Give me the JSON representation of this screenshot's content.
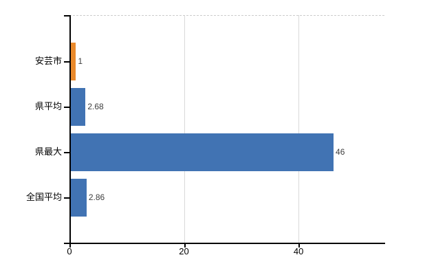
{
  "chart_data": {
    "type": "bar",
    "orientation": "horizontal",
    "categories": [
      "安芸市",
      "県平均",
      "県最大",
      "全国平均"
    ],
    "values": [
      1,
      2.68,
      46,
      2.86
    ],
    "value_labels": [
      "1",
      "2.68",
      "46",
      "2.86"
    ],
    "bar_colors": [
      "#EA8A2C",
      "#4173B3",
      "#4173B3",
      "#4173B3"
    ],
    "highlighted_category": "安芸市",
    "x_ticks": [
      "0",
      "20",
      "40"
    ],
    "x_tick_values": [
      0,
      20,
      40
    ],
    "xlim": [
      0,
      55
    ],
    "grid": "vertical gridlines at x ticks; light leader line from each value label to plot right edge; dashed top border",
    "legend": "none",
    "colors": {
      "axis": "#000000",
      "gridline": "#d9d9d9",
      "top_border": "#cccccc",
      "leader_line": "#d6d6d6",
      "bar_blue": "#4173B3",
      "bar_orange": "#EA8A2C",
      "background": "#ffffff"
    }
  }
}
